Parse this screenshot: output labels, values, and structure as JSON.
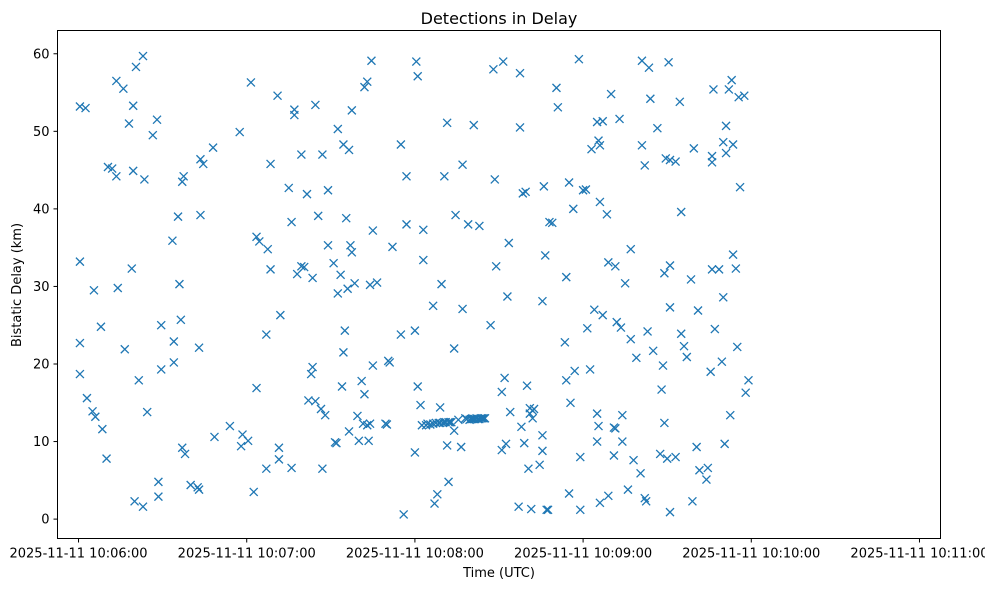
{
  "chart_data": {
    "type": "scatter",
    "title": "Detections in Delay",
    "xlabel": "Time (UTC)",
    "ylabel": "Bistatic Delay (km)",
    "xlim": [
      -7.5,
      307.5
    ],
    "ylim": [
      -2.5,
      63
    ],
    "x_unit": "seconds after 2025-11-11 10:06:00",
    "marker": "x",
    "color": "#1f77b4",
    "x_ticks": [
      {
        "value": 0,
        "label": "2025-11-11 10:06:00"
      },
      {
        "value": 60,
        "label": "2025-11-11 10:07:00"
      },
      {
        "value": 120,
        "label": "2025-11-11 10:08:00"
      },
      {
        "value": 180,
        "label": "2025-11-11 10:09:00"
      },
      {
        "value": 240,
        "label": "2025-11-11 10:10:00"
      },
      {
        "value": 300,
        "label": "2025-11-11 10:11:00"
      }
    ],
    "y_ticks": [
      {
        "value": 0,
        "label": "0"
      },
      {
        "value": 10,
        "label": "10"
      },
      {
        "value": 20,
        "label": "20"
      },
      {
        "value": 30,
        "label": "30"
      },
      {
        "value": 40,
        "label": "40"
      },
      {
        "value": 50,
        "label": "50"
      },
      {
        "value": 60,
        "label": "60"
      }
    ],
    "points": [
      [
        0.5,
        53.2
      ],
      [
        2.5,
        53.0
      ],
      [
        0.5,
        33.2
      ],
      [
        0.5,
        22.7
      ],
      [
        0.5,
        18.7
      ],
      [
        3,
        15.6
      ],
      [
        5,
        13.9
      ],
      [
        6,
        13.2
      ],
      [
        5.5,
        29.5
      ],
      [
        8,
        24.8
      ],
      [
        8.5,
        11.6
      ],
      [
        10,
        7.8
      ],
      [
        10.5,
        45.4
      ],
      [
        12,
        45.2
      ],
      [
        13.5,
        44.2
      ],
      [
        13.5,
        56.5
      ],
      [
        16,
        55.5
      ],
      [
        14,
        29.8
      ],
      [
        16.5,
        21.9
      ],
      [
        18,
        51.0
      ],
      [
        19.5,
        53.3
      ],
      [
        20.5,
        58.3
      ],
      [
        19,
        32.3
      ],
      [
        19.5,
        44.9
      ],
      [
        20,
        2.3
      ],
      [
        23,
        59.7
      ],
      [
        21.5,
        17.9
      ],
      [
        23.5,
        43.8
      ],
      [
        24.5,
        13.8
      ],
      [
        23,
        1.6
      ],
      [
        26.5,
        49.5
      ],
      [
        28,
        51.5
      ],
      [
        28.5,
        4.8
      ],
      [
        28.5,
        2.9
      ],
      [
        29.5,
        25.0
      ],
      [
        29.5,
        19.3
      ],
      [
        33.5,
        35.9
      ],
      [
        34,
        22.9
      ],
      [
        34,
        20.2
      ],
      [
        35.5,
        39.0
      ],
      [
        36,
        30.3
      ],
      [
        36.5,
        25.7
      ],
      [
        37.5,
        44.2
      ],
      [
        37,
        43.5
      ],
      [
        37,
        9.2
      ],
      [
        38,
        8.4
      ],
      [
        40,
        4.4
      ],
      [
        42.5,
        4.1
      ],
      [
        43,
        3.8
      ],
      [
        43,
        22.1
      ],
      [
        43.5,
        39.2
      ],
      [
        43.5,
        46.4
      ],
      [
        44.5,
        45.8
      ],
      [
        48,
        47.9
      ],
      [
        48.5,
        10.6
      ],
      [
        54,
        12.0
      ],
      [
        57.5,
        49.9
      ],
      [
        58,
        9.4
      ],
      [
        58.5,
        10.9
      ],
      [
        60.5,
        10.1
      ],
      [
        61.5,
        56.3
      ],
      [
        62.5,
        3.5
      ],
      [
        63.5,
        16.9
      ],
      [
        63.5,
        36.4
      ],
      [
        64.5,
        35.8
      ],
      [
        67,
        6.5
      ],
      [
        67,
        23.8
      ],
      [
        67.5,
        34.8
      ],
      [
        68.5,
        32.2
      ],
      [
        68.5,
        45.8
      ],
      [
        71,
        54.6
      ],
      [
        71.5,
        9.2
      ],
      [
        71.5,
        7.7
      ],
      [
        72,
        26.3
      ],
      [
        75,
        42.7
      ],
      [
        76,
        6.6
      ],
      [
        76,
        38.3
      ],
      [
        77,
        52.8
      ],
      [
        77,
        52.1
      ],
      [
        78,
        31.6
      ],
      [
        79.5,
        32.6
      ],
      [
        79.5,
        47.0
      ],
      [
        80.5,
        32.5
      ],
      [
        81.5,
        41.9
      ],
      [
        82,
        15.3
      ],
      [
        83,
        18.7
      ],
      [
        83.5,
        19.6
      ],
      [
        83.5,
        31.1
      ],
      [
        84.5,
        53.4
      ],
      [
        84.5,
        15.2
      ],
      [
        85.5,
        39.1
      ],
      [
        86.5,
        14.2
      ],
      [
        87,
        6.5
      ],
      [
        87,
        47.0
      ],
      [
        88,
        13.4
      ],
      [
        89,
        42.4
      ],
      [
        89,
        35.3
      ],
      [
        91,
        33.0
      ],
      [
        91.5,
        9.9
      ],
      [
        92,
        9.8
      ],
      [
        92.5,
        50.3
      ],
      [
        92.5,
        29.1
      ],
      [
        93.5,
        31.5
      ],
      [
        94,
        17.1
      ],
      [
        94.5,
        21.5
      ],
      [
        94.5,
        48.3
      ],
      [
        95,
        24.3
      ],
      [
        95.5,
        38.8
      ],
      [
        96,
        29.7
      ],
      [
        96.5,
        11.3
      ],
      [
        96.5,
        47.6
      ],
      [
        97,
        35.3
      ],
      [
        97.5,
        34.4
      ],
      [
        97.5,
        52.7
      ],
      [
        98.5,
        30.4
      ],
      [
        99.5,
        13.3
      ],
      [
        100,
        10.1
      ],
      [
        101,
        17.8
      ],
      [
        101.5,
        12.3
      ],
      [
        102,
        16.1
      ],
      [
        102,
        55.7
      ],
      [
        103,
        56.4
      ],
      [
        103,
        12.1
      ],
      [
        103.5,
        10.1
      ],
      [
        104,
        12.3
      ],
      [
        104,
        30.2
      ],
      [
        104.5,
        59.1
      ],
      [
        105,
        19.8
      ],
      [
        105,
        37.2
      ],
      [
        106.5,
        30.5
      ],
      [
        109.5,
        12.3
      ],
      [
        110,
        12.2
      ],
      [
        110.5,
        20.4
      ],
      [
        111,
        20.2
      ],
      [
        112,
        35.1
      ],
      [
        115,
        48.3
      ],
      [
        115,
        23.8
      ],
      [
        116,
        0.6
      ],
      [
        117,
        44.2
      ],
      [
        117,
        38.0
      ],
      [
        120,
        24.3
      ],
      [
        120,
        8.6
      ],
      [
        120.5,
        59.0
      ],
      [
        121,
        57.1
      ],
      [
        121,
        17.1
      ],
      [
        122,
        14.7
      ],
      [
        122.5,
        12.1
      ],
      [
        123,
        37.3
      ],
      [
        123,
        33.4
      ],
      [
        124,
        12.1
      ],
      [
        124.5,
        12.3
      ],
      [
        125.5,
        12.2
      ],
      [
        126.5,
        27.5
      ],
      [
        126.5,
        12.3
      ],
      [
        127,
        2.0
      ],
      [
        127.5,
        12.4
      ],
      [
        128,
        3.2
      ],
      [
        128.5,
        12.4
      ],
      [
        129,
        12.4
      ],
      [
        129,
        14.4
      ],
      [
        129.5,
        30.3
      ],
      [
        130,
        12.4
      ],
      [
        130.5,
        12.5
      ],
      [
        130.5,
        44.2
      ],
      [
        131,
        12.5
      ],
      [
        131.5,
        51.1
      ],
      [
        131.5,
        9.5
      ],
      [
        132,
        12.5
      ],
      [
        132,
        4.8
      ],
      [
        132.5,
        12.5
      ],
      [
        133,
        12.5
      ],
      [
        134,
        22.0
      ],
      [
        134,
        11.4
      ],
      [
        134.5,
        39.2
      ],
      [
        135.5,
        12.8
      ],
      [
        136.5,
        9.3
      ],
      [
        137,
        27.1
      ],
      [
        137,
        45.7
      ],
      [
        138,
        13.0
      ],
      [
        138.5,
        12.9
      ],
      [
        139,
        38.0
      ],
      [
        139.5,
        12.8
      ],
      [
        140,
        12.9
      ],
      [
        140.5,
        12.9
      ],
      [
        141,
        12.9
      ],
      [
        141,
        50.8
      ],
      [
        141.5,
        12.9
      ],
      [
        142,
        13.0
      ],
      [
        142.5,
        12.9
      ],
      [
        143,
        37.8
      ],
      [
        143,
        12.9
      ],
      [
        143.5,
        13.0
      ],
      [
        144,
        13.0
      ],
      [
        144.5,
        13.0
      ],
      [
        145,
        13.0
      ],
      [
        147,
        25.0
      ],
      [
        148,
        58.0
      ],
      [
        148.5,
        43.8
      ],
      [
        149,
        32.6
      ],
      [
        151,
        16.4
      ],
      [
        151,
        8.9
      ],
      [
        151.5,
        59.0
      ],
      [
        152,
        18.2
      ],
      [
        152.5,
        9.7
      ],
      [
        153,
        28.7
      ],
      [
        153.5,
        35.6
      ],
      [
        154,
        13.8
      ],
      [
        157,
        1.6
      ],
      [
        157.5,
        57.5
      ],
      [
        157.5,
        50.5
      ],
      [
        158,
        11.9
      ],
      [
        158.5,
        42.0
      ],
      [
        159,
        9.8
      ],
      [
        159.5,
        42.2
      ],
      [
        160,
        17.2
      ],
      [
        160.5,
        6.5
      ],
      [
        161,
        13.6
      ],
      [
        161,
        14.3
      ],
      [
        161.5,
        1.3
      ],
      [
        162,
        14.0
      ],
      [
        162,
        13.0
      ],
      [
        162.5,
        14.2
      ],
      [
        164.5,
        7.0
      ],
      [
        165.5,
        10.8
      ],
      [
        165.5,
        28.1
      ],
      [
        165.5,
        8.8
      ],
      [
        166,
        42.9
      ],
      [
        166.5,
        34.0
      ],
      [
        167,
        1.2
      ],
      [
        167.5,
        1.2
      ],
      [
        168,
        38.3
      ],
      [
        169,
        38.2
      ],
      [
        170.5,
        55.6
      ],
      [
        171,
        53.1
      ],
      [
        173.5,
        22.8
      ],
      [
        174,
        31.2
      ],
      [
        174,
        17.9
      ],
      [
        175,
        43.4
      ],
      [
        175,
        3.3
      ],
      [
        175.5,
        15.0
      ],
      [
        176.5,
        40.0
      ],
      [
        177,
        19.1
      ],
      [
        178.5,
        59.3
      ],
      [
        179,
        8.0
      ],
      [
        179,
        1.2
      ],
      [
        180,
        42.4
      ],
      [
        181,
        42.5
      ],
      [
        181.5,
        24.6
      ],
      [
        182.5,
        19.3
      ],
      [
        183,
        47.7
      ],
      [
        184,
        27.0
      ],
      [
        185,
        10.0
      ],
      [
        185,
        51.2
      ],
      [
        185,
        13.6
      ],
      [
        185.5,
        48.8
      ],
      [
        185.5,
        12.0
      ],
      [
        186,
        48.2
      ],
      [
        186,
        2.1
      ],
      [
        186,
        40.9
      ],
      [
        187,
        51.3
      ],
      [
        187,
        26.3
      ],
      [
        188.5,
        39.3
      ],
      [
        189,
        33.1
      ],
      [
        189,
        3.0
      ],
      [
        190,
        54.8
      ],
      [
        191,
        11.8
      ],
      [
        191.5,
        11.7
      ],
      [
        191,
        8.2
      ],
      [
        191.5,
        32.6
      ],
      [
        192,
        25.4
      ],
      [
        193,
        51.6
      ],
      [
        193.5,
        24.7
      ],
      [
        194,
        13.4
      ],
      [
        194,
        10.0
      ],
      [
        195,
        30.4
      ],
      [
        196,
        3.8
      ],
      [
        197,
        23.2
      ],
      [
        197,
        34.8
      ],
      [
        198,
        7.6
      ],
      [
        199,
        20.8
      ],
      [
        200.5,
        5.9
      ],
      [
        201,
        59.1
      ],
      [
        201,
        48.2
      ],
      [
        202,
        45.6
      ],
      [
        202,
        2.7
      ],
      [
        202.5,
        2.3
      ],
      [
        203,
        24.2
      ],
      [
        203.5,
        58.2
      ],
      [
        204,
        54.2
      ],
      [
        205,
        21.7
      ],
      [
        206.5,
        50.4
      ],
      [
        207.5,
        8.4
      ],
      [
        208,
        16.7
      ],
      [
        208.5,
        19.8
      ],
      [
        209,
        31.7
      ],
      [
        209,
        12.4
      ],
      [
        209.5,
        46.5
      ],
      [
        210,
        7.8
      ],
      [
        210.5,
        58.9
      ],
      [
        211,
        46.3
      ],
      [
        211,
        32.7
      ],
      [
        211,
        27.3
      ],
      [
        211,
        0.9
      ],
      [
        213,
        46.1
      ],
      [
        213,
        8.0
      ],
      [
        214.5,
        53.8
      ],
      [
        215,
        39.6
      ],
      [
        215,
        23.9
      ],
      [
        216,
        22.3
      ],
      [
        217,
        20.9
      ],
      [
        218.5,
        30.9
      ],
      [
        219,
        2.3
      ],
      [
        219.5,
        47.8
      ],
      [
        220.5,
        9.3
      ],
      [
        221,
        26.9
      ],
      [
        221.5,
        6.3
      ],
      [
        224,
        5.1
      ],
      [
        224.5,
        6.6
      ],
      [
        225.5,
        19.0
      ],
      [
        226,
        32.2
      ],
      [
        226,
        46.8
      ],
      [
        226,
        46.0
      ],
      [
        226.5,
        55.4
      ],
      [
        227,
        24.5
      ],
      [
        228.5,
        32.2
      ],
      [
        229.5,
        20.3
      ],
      [
        230,
        48.6
      ],
      [
        230,
        28.6
      ],
      [
        230.5,
        9.7
      ],
      [
        231,
        47.2
      ],
      [
        231,
        50.7
      ],
      [
        232,
        55.4
      ],
      [
        232.5,
        13.4
      ],
      [
        233,
        56.6
      ],
      [
        233.5,
        48.3
      ],
      [
        233.5,
        34.1
      ],
      [
        234.5,
        32.3
      ],
      [
        235,
        22.2
      ],
      [
        235.5,
        54.4
      ],
      [
        236,
        42.8
      ],
      [
        237.5,
        54.6
      ],
      [
        238,
        16.3
      ],
      [
        239,
        17.9
      ]
    ]
  }
}
